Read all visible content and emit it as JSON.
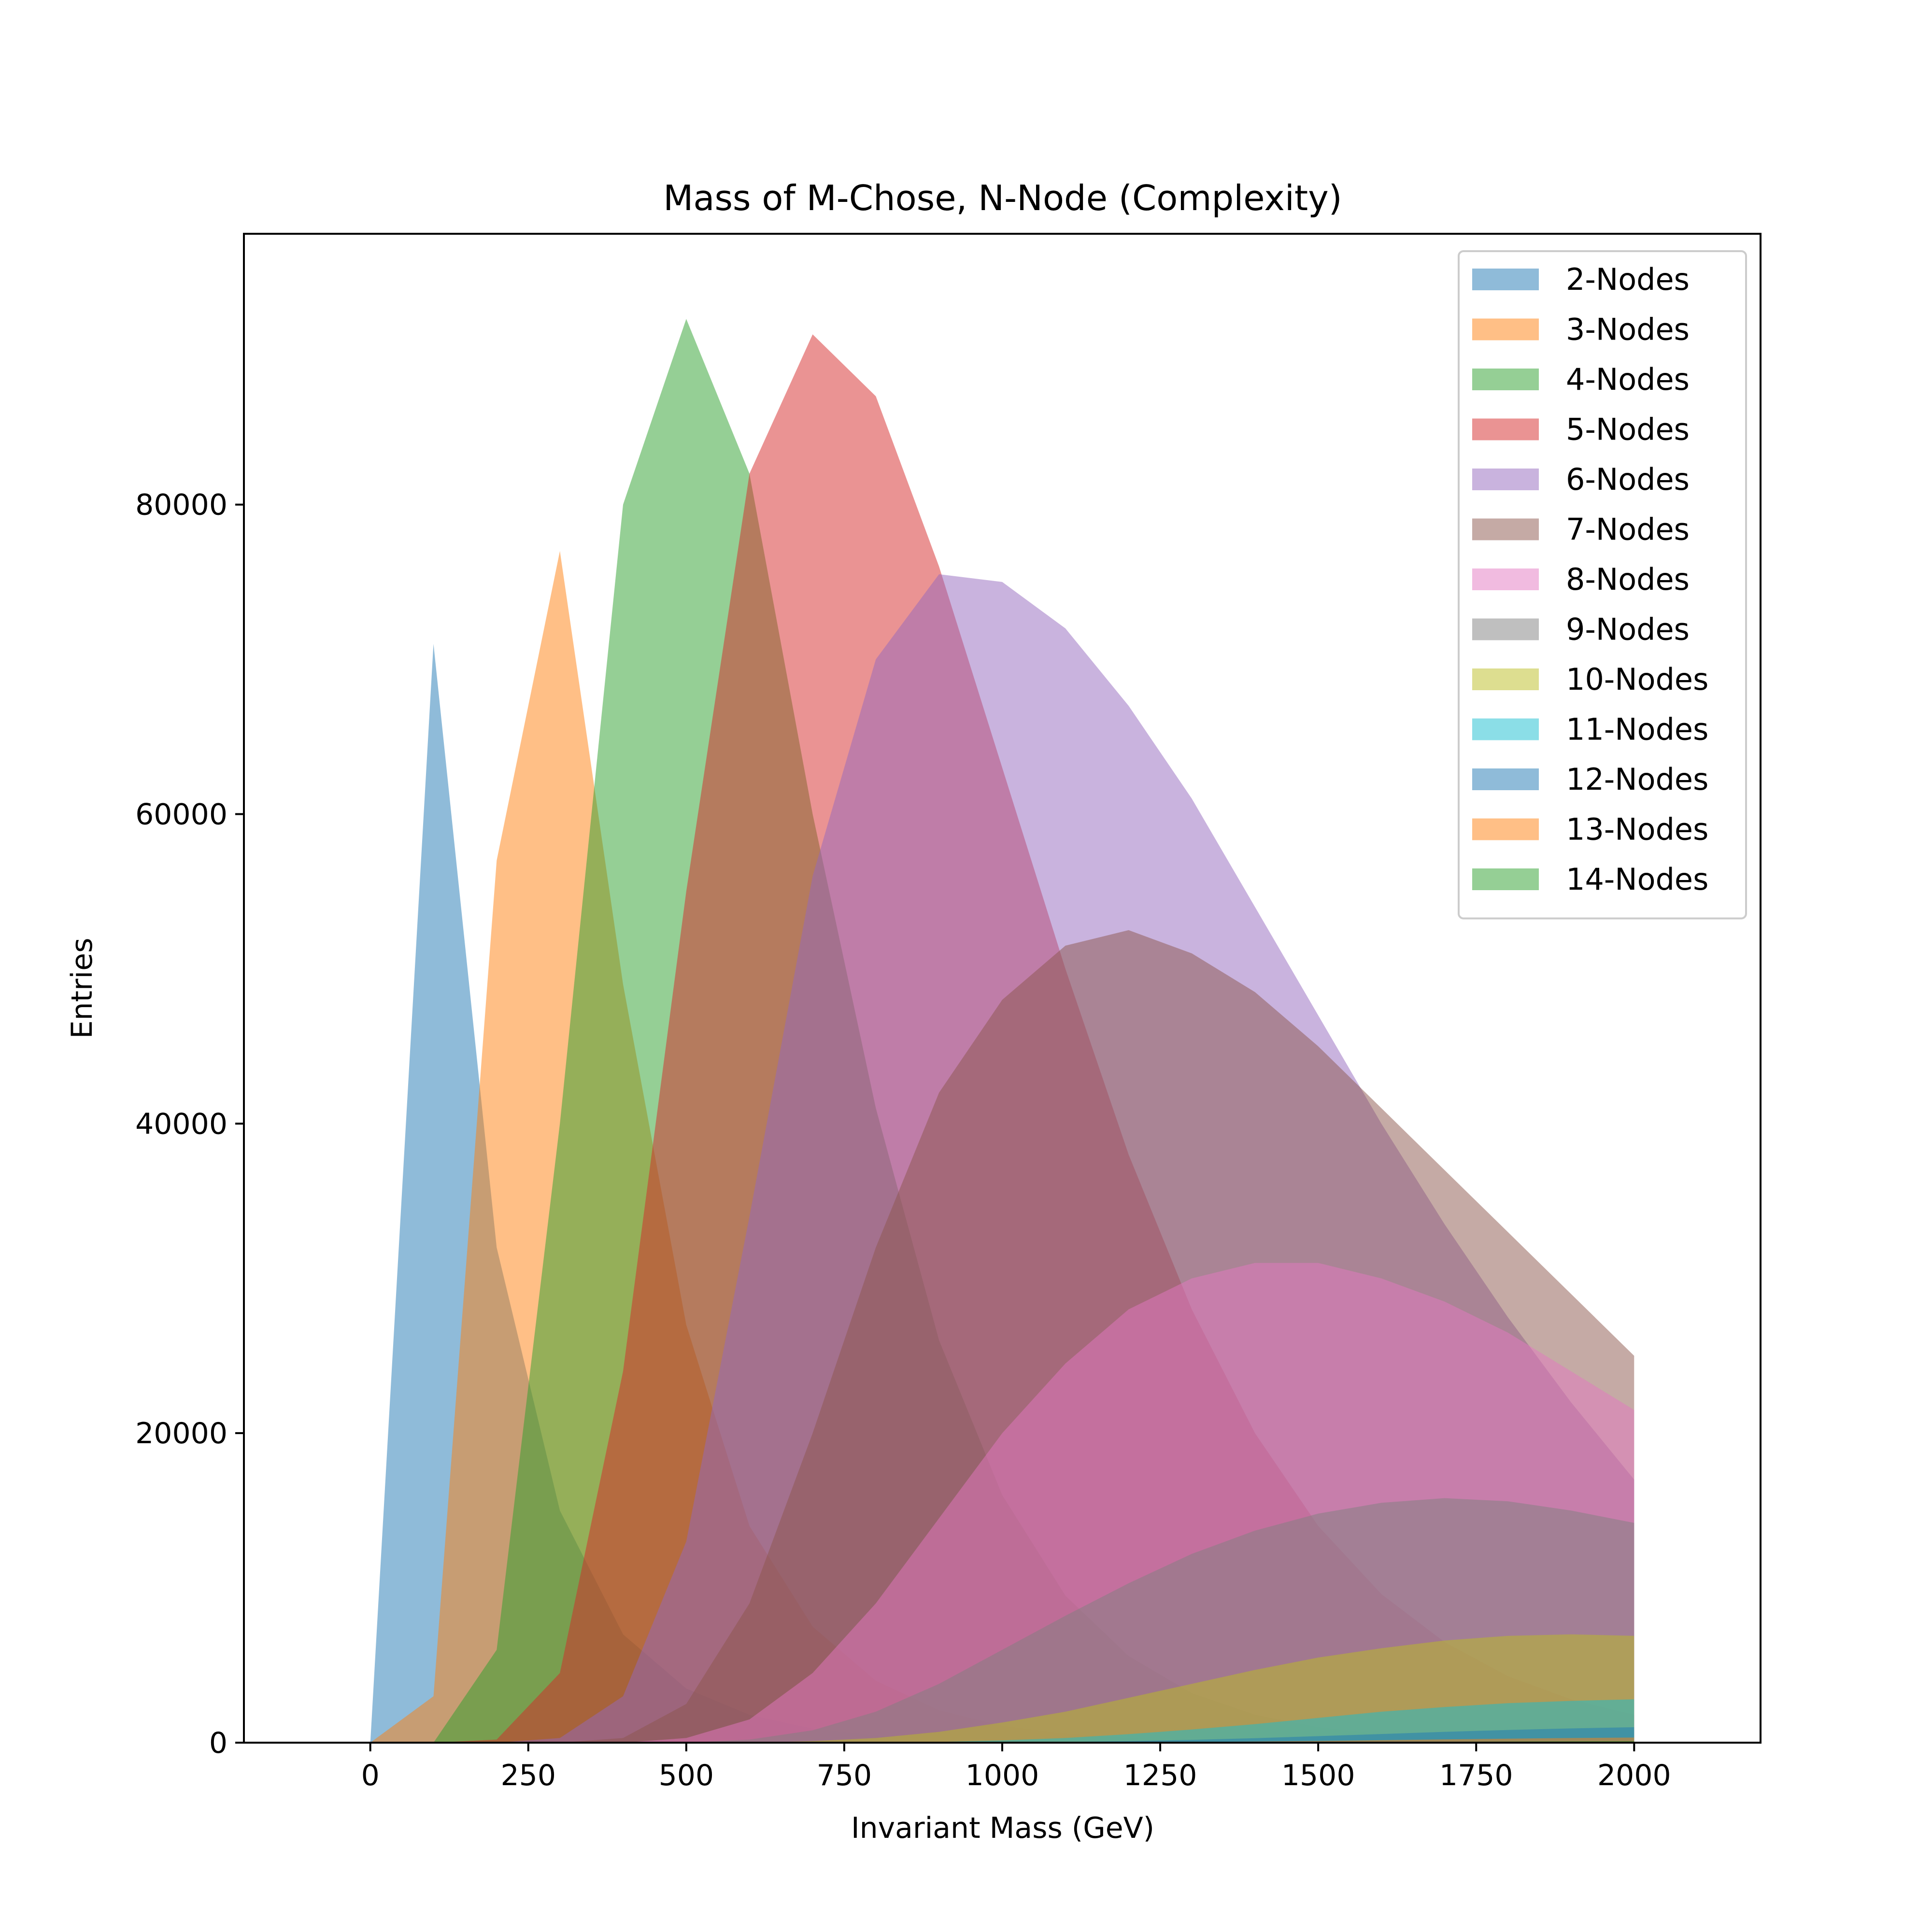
{
  "chart_data": {
    "type": "area",
    "title": "Mass of M-Chose, N-Node (Complexity)",
    "xlabel": "Invariant Mass (GeV)",
    "ylabel": "Entries",
    "xlim": [
      -200,
      2200
    ],
    "ylim": [
      0,
      97500
    ],
    "xticks": [
      0,
      250,
      500,
      750,
      1000,
      1250,
      1500,
      1750,
      2000
    ],
    "yticks": [
      0,
      20000,
      40000,
      60000,
      80000
    ],
    "grid": false,
    "legend_position": "top-right",
    "opacity": 0.5,
    "x": [
      0,
      100,
      200,
      300,
      400,
      500,
      600,
      700,
      800,
      900,
      1000,
      1100,
      1200,
      1300,
      1400,
      1500,
      1600,
      1700,
      1800,
      1900,
      2000
    ],
    "series": [
      {
        "name": "2-Nodes",
        "color": "#1f77b4",
        "values": [
          0,
          71000,
          32000,
          15000,
          7000,
          3500,
          1800,
          900,
          450,
          220,
          110,
          60,
          30,
          15,
          8,
          4,
          2,
          1,
          0,
          0,
          0
        ]
      },
      {
        "name": "3-Nodes",
        "color": "#ff7f0e",
        "values": [
          0,
          3000,
          57000,
          77000,
          49000,
          27000,
          14000,
          7500,
          4000,
          2100,
          1100,
          600,
          300,
          160,
          80,
          40,
          20,
          10,
          5,
          2,
          1
        ]
      },
      {
        "name": "4-Nodes",
        "color": "#2ca02c",
        "values": [
          0,
          0,
          6000,
          40000,
          80000,
          92000,
          82000,
          60000,
          41000,
          26000,
          16000,
          9500,
          5600,
          3200,
          1800,
          1000,
          560,
          300,
          160,
          85,
          45
        ]
      },
      {
        "name": "5-Nodes",
        "color": "#d62728",
        "values": [
          0,
          0,
          200,
          4500,
          24000,
          55000,
          82000,
          91000,
          87000,
          76000,
          63000,
          50000,
          38000,
          28000,
          20000,
          14000,
          9600,
          6500,
          4300,
          2800,
          1800
        ]
      },
      {
        "name": "6-Nodes",
        "color": "#9467bd",
        "values": [
          0,
          0,
          0,
          300,
          3000,
          13000,
          34000,
          56000,
          70000,
          75500,
          75000,
          72000,
          67000,
          61000,
          54000,
          47000,
          40000,
          33500,
          27500,
          22000,
          17000
        ]
      },
      {
        "name": "7-Nodes",
        "color": "#8c564b",
        "values": [
          0,
          0,
          0,
          0,
          300,
          2500,
          9000,
          20000,
          32000,
          42000,
          48000,
          51500,
          52500,
          51000,
          48500,
          45000,
          41000,
          37000,
          33000,
          29000,
          25000
        ]
      },
      {
        "name": "8-Nodes",
        "color": "#e377c2",
        "values": [
          0,
          0,
          0,
          0,
          0,
          300,
          1500,
          4500,
          9000,
          14500,
          20000,
          24500,
          28000,
          30000,
          31000,
          31000,
          30000,
          28500,
          26500,
          24000,
          21500
        ]
      },
      {
        "name": "9-Nodes",
        "color": "#7f7f7f",
        "values": [
          0,
          0,
          0,
          0,
          0,
          0,
          200,
          800,
          2000,
          3800,
          6000,
          8200,
          10300,
          12200,
          13700,
          14800,
          15500,
          15800,
          15600,
          15000,
          14200
        ]
      },
      {
        "name": "10-Nodes",
        "color": "#bcbd22",
        "values": [
          0,
          0,
          0,
          0,
          0,
          0,
          0,
          100,
          300,
          700,
          1300,
          2000,
          2900,
          3800,
          4700,
          5500,
          6100,
          6600,
          6900,
          7000,
          6900
        ]
      },
      {
        "name": "11-Nodes",
        "color": "#17becf",
        "values": [
          0,
          0,
          0,
          0,
          0,
          0,
          0,
          0,
          0,
          50,
          150,
          300,
          550,
          850,
          1200,
          1600,
          2000,
          2300,
          2550,
          2700,
          2800
        ]
      },
      {
        "name": "12-Nodes",
        "color": "#1f77b4",
        "values": [
          0,
          0,
          0,
          0,
          0,
          0,
          0,
          0,
          0,
          0,
          20,
          50,
          100,
          180,
          290,
          420,
          560,
          700,
          820,
          920,
          1000
        ]
      },
      {
        "name": "13-Nodes",
        "color": "#ff7f0e",
        "values": [
          0,
          0,
          0,
          0,
          0,
          0,
          0,
          0,
          0,
          0,
          0,
          10,
          25,
          45,
          75,
          110,
          160,
          210,
          260,
          300,
          330
        ]
      },
      {
        "name": "14-Nodes",
        "color": "#2ca02c",
        "values": [
          0,
          0,
          0,
          0,
          0,
          0,
          0,
          0,
          0,
          0,
          0,
          0,
          5,
          10,
          20,
          30,
          45,
          60,
          75,
          90,
          100
        ]
      }
    ]
  }
}
